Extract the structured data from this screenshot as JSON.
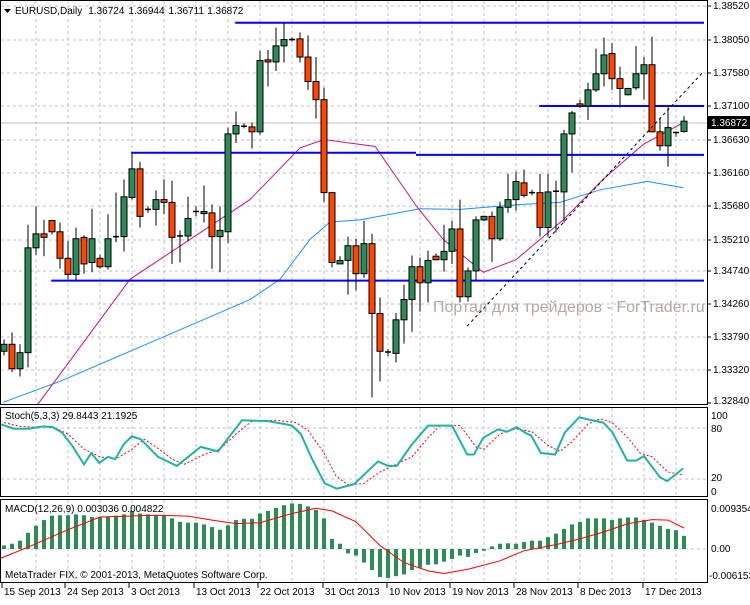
{
  "header": {
    "symbol": "EURUSD,Daily",
    "open": "1.36724",
    "high": "1.36944",
    "low": "1.36711",
    "close": "1.36872"
  },
  "watermark": "Портал для трейдеров - ForTrader.ru",
  "copyright": "MetaTrader FIX, © 2001-2013, MetaQuotes Software Corp.",
  "colors": {
    "bull": "#2e8b57",
    "bear": "#ff4500",
    "level": "#0000ff",
    "ma_fast": "#c71585",
    "ma_slow": "#1e90ff",
    "stoch_k": "#20b2aa",
    "stoch_d": "#ff0000",
    "macd_hist": "#2e8b57",
    "macd_signal": "#ff0000"
  },
  "price_axis": {
    "labels": [
      "1.38520",
      "1.38050",
      "1.37580",
      "1.37100",
      "1.36630",
      "1.36160",
      "1.35680",
      "1.35210",
      "1.34740",
      "1.34260",
      "1.33790",
      "1.33320",
      "1.32840"
    ],
    "current": "1.36872",
    "current_value": 1.36872
  },
  "time_axis": {
    "labels": [
      "15 Sep 2013",
      "24 Sep 2013",
      "3 Oct 2013",
      "13 Oct 2013",
      "22 Oct 2013",
      "31 Oct 2013",
      "10 Nov 2013",
      "19 Nov 2013",
      "28 Nov 2013",
      "8 Dec 2013",
      "17 Dec 2013"
    ]
  },
  "chart_data": {
    "type": "candlestick",
    "ylim": [
      1.3284,
      1.3852
    ],
    "candles": [
      [
        1.3358,
        1.3375,
        1.3352,
        1.3368
      ],
      [
        1.3368,
        1.3385,
        1.3328,
        1.3333
      ],
      [
        1.3333,
        1.3368,
        1.3322,
        1.3356
      ],
      [
        1.3356,
        1.3539,
        1.3335,
        1.3506
      ],
      [
        1.3506,
        1.3565,
        1.3496,
        1.3526
      ],
      [
        1.3526,
        1.3546,
        1.3494,
        1.3521
      ],
      [
        1.3545,
        1.3546,
        1.3525,
        1.3529
      ],
      [
        1.3529,
        1.3542,
        1.3476,
        1.3491
      ],
      [
        1.3491,
        1.3516,
        1.3461,
        1.3468
      ],
      [
        1.3468,
        1.3535,
        1.3459,
        1.3519
      ],
      [
        1.3521,
        1.3524,
        1.3469,
        1.3483
      ],
      [
        1.3485,
        1.3562,
        1.3471,
        1.3519
      ],
      [
        1.3491,
        1.3496,
        1.3476,
        1.3479
      ],
      [
        1.3479,
        1.3554,
        1.3475,
        1.3519
      ],
      [
        1.3521,
        1.3585,
        1.3514,
        1.3522
      ],
      [
        1.3522,
        1.3604,
        1.3501,
        1.3579
      ],
      [
        1.3578,
        1.3642,
        1.3575,
        1.3619
      ],
      [
        1.3619,
        1.3629,
        1.3535,
        1.3551
      ],
      [
        1.356,
        1.3565,
        1.3556,
        1.3561
      ],
      [
        1.3561,
        1.3588,
        1.3538,
        1.3575
      ],
      [
        1.3575,
        1.3604,
        1.3554,
        1.3571
      ],
      [
        1.3571,
        1.3602,
        1.3483,
        1.3521
      ],
      [
        1.3521,
        1.3531,
        1.3485,
        1.3523
      ],
      [
        1.3523,
        1.3579,
        1.3515,
        1.3548
      ],
      [
        1.3557,
        1.3565,
        1.3551,
        1.3558
      ],
      [
        1.3555,
        1.3595,
        1.3542,
        1.3558
      ],
      [
        1.3556,
        1.3568,
        1.3476,
        1.3522
      ],
      [
        1.3522,
        1.3565,
        1.3471,
        1.3531
      ],
      [
        1.3529,
        1.3678,
        1.3513,
        1.3669
      ],
      [
        1.3669,
        1.3701,
        1.3656,
        1.3681
      ],
      [
        1.368,
        1.3684,
        1.3677,
        1.3679
      ],
      [
        1.3679,
        1.3685,
        1.3648,
        1.3672
      ],
      [
        1.3672,
        1.3788,
        1.3668,
        1.3774
      ],
      [
        1.3775,
        1.3789,
        1.3737,
        1.3772
      ],
      [
        1.3772,
        1.3821,
        1.3759,
        1.3795
      ],
      [
        1.3795,
        1.3828,
        1.3771,
        1.3804
      ],
      [
        1.3804,
        1.3807,
        1.3801,
        1.3803
      ],
      [
        1.3805,
        1.3814,
        1.3771,
        1.3779
      ],
      [
        1.3779,
        1.381,
        1.3732,
        1.3744
      ],
      [
        1.3744,
        1.3779,
        1.3691,
        1.3718
      ],
      [
        1.3718,
        1.3735,
        1.3571,
        1.3585
      ],
      [
        1.3585,
        1.3586,
        1.3478,
        1.3485
      ],
      [
        1.3483,
        1.3494,
        1.3483,
        1.3488
      ],
      [
        1.3488,
        1.3522,
        1.3439,
        1.3509
      ],
      [
        1.3509,
        1.3519,
        1.3445,
        1.3469
      ],
      [
        1.3469,
        1.3545,
        1.3463,
        1.3512
      ],
      [
        1.3512,
        1.3526,
        1.3292,
        1.3412
      ],
      [
        1.3412,
        1.3435,
        1.3315,
        1.3358
      ],
      [
        1.3357,
        1.3361,
        1.3351,
        1.3356
      ],
      [
        1.3355,
        1.3413,
        1.3342,
        1.3403
      ],
      [
        1.3403,
        1.3453,
        1.3369,
        1.3432
      ],
      [
        1.3432,
        1.3495,
        1.3386,
        1.3479
      ],
      [
        1.3479,
        1.3492,
        1.3415,
        1.3456
      ],
      [
        1.3456,
        1.3502,
        1.3428,
        1.3488
      ],
      [
        1.3494,
        1.3498,
        1.3488,
        1.3489
      ],
      [
        1.3489,
        1.3539,
        1.3472,
        1.3501
      ],
      [
        1.3501,
        1.3545,
        1.3483,
        1.3533
      ],
      [
        1.3533,
        1.3575,
        1.3428,
        1.3436
      ],
      [
        1.3436,
        1.3478,
        1.3429,
        1.3473
      ],
      [
        1.3473,
        1.3551,
        1.3459,
        1.3546
      ],
      [
        1.3546,
        1.3552,
        1.3544,
        1.3551
      ],
      [
        1.3551,
        1.3558,
        1.3486,
        1.3519
      ],
      [
        1.3519,
        1.3572,
        1.3516,
        1.3564
      ],
      [
        1.3564,
        1.3612,
        1.3556,
        1.3575
      ],
      [
        1.3575,
        1.3615,
        1.3559,
        1.3601
      ],
      [
        1.3599,
        1.3618,
        1.3578,
        1.3581
      ],
      [
        1.3585,
        1.3589,
        1.3581,
        1.3584
      ],
      [
        1.3585,
        1.3612,
        1.3522,
        1.3535
      ],
      [
        1.3535,
        1.3612,
        1.3522,
        1.3586
      ],
      [
        1.3587,
        1.3602,
        1.3528,
        1.3586
      ],
      [
        1.3586,
        1.3675,
        1.3542,
        1.3669
      ],
      [
        1.3669,
        1.3702,
        1.3614,
        1.3699
      ],
      [
        1.3712,
        1.3718,
        1.3706,
        1.3709
      ],
      [
        1.3709,
        1.3742,
        1.3689,
        1.3732
      ],
      [
        1.3732,
        1.3791,
        1.3729,
        1.3755
      ],
      [
        1.3755,
        1.3807,
        1.3737,
        1.3782
      ],
      [
        1.3784,
        1.3799,
        1.3732,
        1.3748
      ],
      [
        1.3748,
        1.3765,
        1.3707,
        1.3734
      ],
      [
        1.3725,
        1.3735,
        1.3724,
        1.3734
      ],
      [
        1.3735,
        1.3795,
        1.3732,
        1.3755
      ],
      [
        1.3755,
        1.3779,
        1.3718,
        1.3768
      ],
      [
        1.3768,
        1.3808,
        1.3671,
        1.3672
      ],
      [
        1.3672,
        1.3691,
        1.3645,
        1.3652
      ],
      [
        1.3652,
        1.3707,
        1.3622,
        1.3678
      ],
      [
        1.3671,
        1.3672,
        1.3665,
        1.3669
      ],
      [
        1.36724,
        1.36944,
        1.36711,
        1.36872
      ]
    ],
    "ma_fast": [
      [
        5.2,
        1.3282
      ],
      [
        8,
        1.3325
      ],
      [
        16.75,
        1.3461
      ],
      [
        31.75,
        1.3575
      ],
      [
        38,
        1.3649
      ],
      [
        41,
        1.3661
      ],
      [
        47.4,
        1.3651
      ],
      [
        52.6,
        1.3565
      ],
      [
        55.9,
        1.3518
      ],
      [
        60.9,
        1.3471
      ],
      [
        65,
        1.3489
      ],
      [
        70.9,
        1.3546
      ],
      [
        75.9,
        1.3604
      ],
      [
        80.9,
        1.3654
      ],
      [
        85.9,
        1.3685
      ]
    ],
    "ma_slow": [
      [
        0.9,
        1.3285
      ],
      [
        8,
        1.3315
      ],
      [
        16.75,
        1.3358
      ],
      [
        25.5,
        1.3401
      ],
      [
        31.75,
        1.3432
      ],
      [
        35.5,
        1.3461
      ],
      [
        39.25,
        1.3518
      ],
      [
        41.75,
        1.3543
      ],
      [
        45.5,
        1.3546
      ],
      [
        53,
        1.3562
      ],
      [
        58,
        1.3561
      ],
      [
        65.5,
        1.3568
      ],
      [
        70.5,
        1.3571
      ],
      [
        75.5,
        1.3589
      ],
      [
        81.4,
        1.3601
      ],
      [
        85.9,
        1.3592
      ]
    ],
    "levels": [
      {
        "price": 1.3828,
        "from": 29.9,
        "to": 88.5
      },
      {
        "price": 1.3642,
        "from": 16.9,
        "to": 52.5
      },
      {
        "price": 1.3639,
        "from": 52.5,
        "to": 88.5
      },
      {
        "price": 1.3459,
        "from": 6.9,
        "to": 88.5
      },
      {
        "price": 1.3709,
        "from": 67.9,
        "to": 88.5
      }
    ],
    "trendline": [
      [
        58.9,
        1.3394
      ],
      [
        88.5,
        1.3759
      ]
    ],
    "stochastic": {
      "label": "Stoch(5,3,3) 29.8443 21.1925",
      "levels": [
        "100",
        "80",
        "20",
        "0"
      ],
      "k": [
        [
          0.5,
          88
        ],
        [
          2.25,
          82
        ],
        [
          4.1,
          82
        ],
        [
          5.9,
          85
        ],
        [
          7.1,
          84
        ],
        [
          8.25,
          77
        ],
        [
          9.5,
          60
        ],
        [
          11,
          35
        ],
        [
          11.9,
          50
        ],
        [
          12.9,
          37
        ],
        [
          14,
          45
        ],
        [
          14.9,
          42
        ],
        [
          16,
          62
        ],
        [
          17,
          72
        ],
        [
          18.1,
          68
        ],
        [
          20.25,
          45
        ],
        [
          22.6,
          33
        ],
        [
          25.6,
          58
        ],
        [
          27.75,
          52
        ],
        [
          30.75,
          93
        ],
        [
          34,
          92
        ],
        [
          36.1,
          88
        ],
        [
          37,
          86
        ],
        [
          38.1,
          75
        ],
        [
          39.6,
          40
        ],
        [
          41.1,
          10
        ],
        [
          42.6,
          3
        ],
        [
          44.75,
          9
        ],
        [
          47.75,
          39
        ],
        [
          49,
          33
        ],
        [
          50.1,
          33
        ],
        [
          51.9,
          60
        ],
        [
          54,
          86
        ],
        [
          57,
          86
        ],
        [
          58.9,
          48
        ],
        [
          59.75,
          48
        ],
        [
          60.9,
          70
        ],
        [
          62.75,
          81
        ],
        [
          63.9,
          78
        ],
        [
          65.1,
          84
        ],
        [
          66.25,
          76
        ],
        [
          66.9,
          73
        ],
        [
          68.1,
          50
        ],
        [
          69.9,
          48
        ],
        [
          71.1,
          77
        ],
        [
          72.9,
          97
        ],
        [
          74.1,
          94
        ],
        [
          75.9,
          90
        ],
        [
          77,
          78
        ],
        [
          78.9,
          40
        ],
        [
          80,
          40
        ],
        [
          81,
          46
        ],
        [
          83,
          18
        ],
        [
          83.9,
          13
        ],
        [
          85.9,
          29.8
        ]
      ],
      "d": [
        [
          1,
          90
        ],
        [
          3,
          85
        ],
        [
          5,
          84
        ],
        [
          7,
          85
        ],
        [
          9,
          75
        ],
        [
          11,
          55
        ],
        [
          13,
          45
        ],
        [
          15,
          42
        ],
        [
          17,
          55
        ],
        [
          18.5,
          68
        ],
        [
          20,
          58
        ],
        [
          22,
          42
        ],
        [
          23.5,
          35
        ],
        [
          26,
          48
        ],
        [
          28,
          55
        ],
        [
          30,
          75
        ],
        [
          32,
          92
        ],
        [
          35,
          93
        ],
        [
          37.5,
          90
        ],
        [
          39,
          80
        ],
        [
          41,
          50
        ],
        [
          42.5,
          20
        ],
        [
          44,
          8
        ],
        [
          46,
          10
        ],
        [
          48,
          25
        ],
        [
          50,
          35
        ],
        [
          52,
          45
        ],
        [
          54,
          70
        ],
        [
          55.5,
          86
        ],
        [
          58,
          86
        ],
        [
          60,
          58
        ],
        [
          61,
          55
        ],
        [
          63,
          75
        ],
        [
          65,
          82
        ],
        [
          67,
          78
        ],
        [
          69,
          60
        ],
        [
          70.5,
          52
        ],
        [
          72,
          65
        ],
        [
          74,
          88
        ],
        [
          75.5,
          95
        ],
        [
          77,
          90
        ],
        [
          79,
          70
        ],
        [
          80.5,
          50
        ],
        [
          82,
          45
        ],
        [
          84,
          25
        ],
        [
          85.9,
          21.2
        ]
      ]
    },
    "macd": {
      "label": "MACD(12,26,9) 0.003036 0.004822",
      "levels": [
        "0.009354",
        "0.00",
        "-0.006153"
      ],
      "ylim": [
        -0.006153,
        0.009354
      ],
      "histogram": [
        0.0008,
        0.0012,
        0.0019,
        0.0037,
        0.0053,
        0.0066,
        0.0076,
        0.0077,
        0.0077,
        0.0079,
        0.0077,
        0.0073,
        0.0073,
        0.0074,
        0.0076,
        0.0079,
        0.0087,
        0.0081,
        0.0079,
        0.0077,
        0.0077,
        0.007,
        0.0062,
        0.006,
        0.006,
        0.0056,
        0.005,
        0.0044,
        0.0054,
        0.0066,
        0.0069,
        0.0069,
        0.0081,
        0.0087,
        0.0094,
        0.01,
        0.0104,
        0.0103,
        0.0097,
        0.0089,
        0.007,
        0.0023,
        0.0012,
        -0.001,
        -0.0015,
        -0.0031,
        -0.0048,
        -0.0064,
        -0.0066,
        -0.0062,
        -0.0058,
        -0.0048,
        -0.0043,
        -0.0036,
        -0.0035,
        -0.0029,
        -0.0023,
        -0.0015,
        -0.0018,
        -0.0009,
        -0.0004,
        0.0006,
        0.0012,
        0.0013,
        0.0012,
        0.0016,
        0.0019,
        0.0019,
        0.0027,
        0.0035,
        0.0046,
        0.0056,
        0.0062,
        0.007,
        0.007,
        0.007,
        0.0066,
        0.007,
        0.0072,
        0.0072,
        0.0066,
        0.006,
        0.0053,
        0.0046,
        0.0043,
        0.003
      ],
      "signal": [
        [
          0.5,
          -0.0022
        ],
        [
          4,
          0.0004
        ],
        [
          9,
          0.0044
        ],
        [
          13,
          0.0073
        ],
        [
          20,
          0.0077
        ],
        [
          24,
          0.0075
        ],
        [
          27,
          0.0066
        ],
        [
          30,
          0.0058
        ],
        [
          33,
          0.006
        ],
        [
          37,
          0.0081
        ],
        [
          40,
          0.0093
        ],
        [
          42,
          0.0087
        ],
        [
          45,
          0.0062
        ],
        [
          48,
          0.0008
        ],
        [
          51,
          -0.0031
        ],
        [
          54,
          -0.005
        ],
        [
          56,
          -0.0056
        ],
        [
          59,
          -0.0046
        ],
        [
          63,
          -0.0027
        ],
        [
          66,
          -0.0004
        ],
        [
          70,
          0.001
        ],
        [
          73,
          0.0023
        ],
        [
          76,
          0.0039
        ],
        [
          79,
          0.0058
        ],
        [
          82,
          0.0067
        ],
        [
          84,
          0.0066
        ],
        [
          86,
          0.0048
        ]
      ]
    }
  }
}
